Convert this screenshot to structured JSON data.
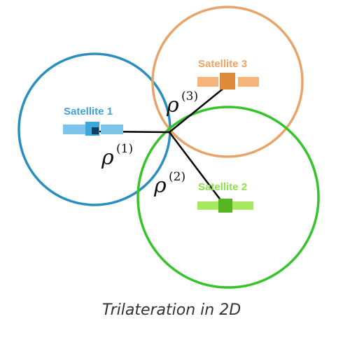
{
  "satellites": [
    {
      "label": "Satellite 1",
      "color": "#2a8fbe",
      "label_color": "#3fa3d6",
      "body_color": "#3ca6dd",
      "panel_color": "#7cc4ea"
    },
    {
      "label": "Satellite 2",
      "color": "#35c42a",
      "label_color": "#8fe04a",
      "body_color": "#56b521",
      "panel_color": "#a8e860"
    },
    {
      "label": "Satellite 3",
      "color": "#e8a46a",
      "label_color": "#f0a260",
      "body_color": "#e08a3c",
      "panel_color": "#f5b47a"
    }
  ],
  "ranges": [
    {
      "symbol": "ρ",
      "index": "(1)"
    },
    {
      "symbol": "ρ",
      "index": "(2)"
    },
    {
      "symbol": "ρ",
      "index": "(3)"
    }
  ],
  "caption": "Trilateration in 2D"
}
